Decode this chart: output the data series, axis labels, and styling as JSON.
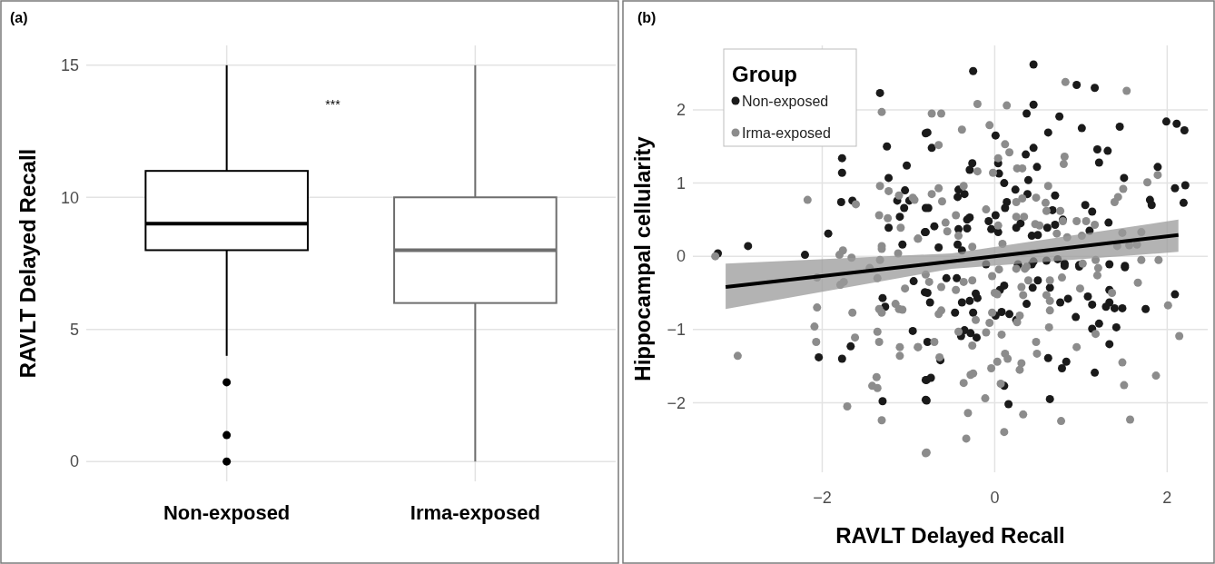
{
  "chart_data": [
    {
      "type": "box",
      "title": "(a)",
      "ylabel": "RAVLT Delayed Recall",
      "categories": [
        "Non-exposed",
        "Irma-exposed"
      ],
      "colors": [
        "#000000",
        "#6e6e6e"
      ],
      "boxes": [
        {
          "low": 4,
          "q1": 8,
          "median": 9,
          "q3": 11,
          "high": 15,
          "outliers": [
            3,
            1,
            0
          ]
        },
        {
          "low": 0,
          "q1": 6,
          "median": 8,
          "q3": 10,
          "high": 15
        }
      ],
      "ylim": [
        -0.75,
        15.75
      ],
      "yticks": [
        0,
        5,
        10,
        15
      ],
      "grid": true,
      "annotations": [
        "***"
      ]
    },
    {
      "type": "scatter",
      "title": "(b)",
      "xlabel": "RAVLT Delayed Recall",
      "ylabel": "Hippocampal cellularity",
      "legend_title": "Group",
      "legend": "top left",
      "marker": "circle",
      "grid": true,
      "xlim": [
        -3.5,
        2.47
      ],
      "ylim": [
        -2.95,
        2.88
      ],
      "xticks": [
        {
          "value": -2,
          "label": "−2"
        },
        0,
        2
      ],
      "yticks": [
        {
          "value": -2,
          "label": "−2"
        },
        {
          "value": -1,
          "label": "−1"
        },
        0,
        1,
        2
      ],
      "series": [
        {
          "name": "Non-exposed",
          "color": "#1a1a1a",
          "x": [
            -1.33,
            -1.25,
            -1.77,
            -1.77,
            -1.78,
            -1.65,
            -1.02,
            -1.23,
            -1.04,
            -1.13,
            -0.99,
            -1.05,
            -1.1,
            -1.23,
            -1.07,
            -1.93,
            -2.2,
            -2.86,
            -3.21,
            -0.8,
            -0.8,
            -0.81,
            -0.25,
            0.45,
            0.95,
            1.16,
            0.45,
            0.37,
            0.75,
            1.01,
            1.45,
            1.99,
            2.11,
            2.2,
            0.62,
            0.01,
            -0.78,
            -0.73,
            0.45,
            0.36,
            0.49,
            -0.26,
            -0.29,
            0.04,
            0.05,
            1.19,
            1.31,
            1.21,
            1.89,
            1.5,
            0.11,
            0.39,
            0.24,
            0.38,
            0.7,
            -0.42,
            -0.35,
            -0.43,
            2.09,
            2.21,
            2.19,
            1.8,
            1.82,
            1.05,
            1.13,
            0.67,
            0.14,
            0.12,
            -0.77,
            -0.29,
            -0.32,
            -0.07,
            0.01,
            -0.04,
            0.04,
            0.25,
            0.3,
            0.61,
            0.7,
            0.79,
            1.32,
            1.1,
            0.43,
            0.5,
            -0.7,
            -0.8,
            -0.42,
            -0.32,
            -0.65,
            -0.43,
            -0.38,
            0.45,
            0.6,
            0.73,
            0.81,
            0.98,
            1.33,
            1.51,
            0.27,
            -1.3,
            -1.27,
            -0.94,
            -0.95,
            -1.67,
            -2.04,
            -1.77,
            -1.3,
            -0.8,
            -0.8,
            -0.81,
            -0.56,
            -0.44,
            -0.78,
            -0.75,
            -0.38,
            -0.29,
            -0.2,
            -0.22,
            -0.46,
            -0.25,
            -0.35,
            -0.39,
            -0.28,
            -0.21,
            0.06,
            0.11,
            0.01,
            0.08,
            0.17,
            0.25,
            0.37,
            0.44,
            0.5,
            0.64,
            0.76,
            0.85,
            0.94,
            1.08,
            1.13,
            1.33,
            1.33,
            1.29,
            1.39,
            1.48,
            1.75,
            2.09,
            1.21,
            1.13,
            1.41,
            1.33,
            -0.78,
            -0.63,
            -0.79,
            -0.74,
            -0.79,
            0.11,
            0.16,
            0.62,
            0.78,
            0.83,
            1.16,
            0.64,
            0.27,
            0.43,
            0.81,
            0.98,
            1.51,
            -0.1
          ],
          "values": [
            2.23,
            1.5,
            1.34,
            1.14,
            0.74,
            0.76,
            1.24,
            1.07,
            0.9,
            0.76,
            0.76,
            0.66,
            0.54,
            0.39,
            0.16,
            0.31,
            0.02,
            0.14,
            0.04,
            1.68,
            0.66,
            0.33,
            2.53,
            2.62,
            2.34,
            2.3,
            2.07,
            1.95,
            1.91,
            1.75,
            1.77,
            1.84,
            1.81,
            1.72,
            1.69,
            1.65,
            1.69,
            1.48,
            1.48,
            1.39,
            1.22,
            1.27,
            1.18,
            1.27,
            1.13,
            1.46,
            1.44,
            1.28,
            1.22,
            1.07,
            1.0,
            1.04,
            0.91,
            0.85,
            0.83,
            0.91,
            0.85,
            0.81,
            0.93,
            0.97,
            0.73,
            0.77,
            0.7,
            0.7,
            0.61,
            0.63,
            0.74,
            0.66,
            0.66,
            0.53,
            0.5,
            0.48,
            0.56,
            0.37,
            0.33,
            0.39,
            0.45,
            0.39,
            0.43,
            0.5,
            0.46,
            0.35,
            0.28,
            0.29,
            0.41,
            0.33,
            0.37,
            0.38,
            0.12,
            0.16,
            0.08,
            -0.07,
            -0.06,
            -0.04,
            -0.1,
            -0.12,
            -0.11,
            -0.13,
            -0.12,
            -0.57,
            -0.69,
            -0.34,
            -1.02,
            -1.23,
            -1.38,
            -1.4,
            -1.98,
            -1.96,
            -1.69,
            -0.49,
            -0.3,
            -0.3,
            -0.5,
            -0.63,
            -0.63,
            -0.61,
            -0.57,
            -0.51,
            -0.77,
            -0.77,
            -1.01,
            -1.09,
            -1.05,
            -1.11,
            -0.46,
            -0.4,
            -0.81,
            -0.76,
            -0.79,
            -0.87,
            -0.65,
            -0.43,
            -0.33,
            -0.43,
            -0.63,
            -0.58,
            -0.83,
            -0.55,
            -0.66,
            -0.46,
            -0.63,
            -0.69,
            -0.71,
            -0.71,
            -0.72,
            -0.52,
            -0.92,
            -0.99,
            -0.97,
            -1.2,
            -1.17,
            -1.42,
            -1.69,
            -1.66,
            -1.97,
            -1.77,
            -2.02,
            -1.39,
            -1.53,
            -1.44,
            -1.59,
            -1.95,
            -0.11,
            -0.11,
            -0.13,
            -0.14,
            -0.15,
            -0.11
          ]
        },
        {
          "name": "Irma-exposed",
          "color": "#8c8c8c",
          "x": [
            -1.31,
            -2.17,
            -1.61,
            -1.33,
            -1.23,
            -1.34,
            -1.24,
            -1.09,
            -0.95,
            -0.93,
            -1.11,
            -0.89,
            -1.31,
            -1.31,
            -1.12,
            -1.76,
            -1.8,
            -1.66,
            -3.24,
            -1.33,
            -0.2,
            0.14,
            0.82,
            1.53,
            -0.73,
            -0.62,
            -0.38,
            -0.06,
            0.12,
            0.17,
            -0.65,
            0.04,
            0.81,
            0.8,
            0.26,
            0.32,
            -0.2,
            -0.02,
            0.62,
            1.77,
            1.89,
            1.49,
            1.43,
            1.39,
            -0.73,
            -0.65,
            -0.61,
            -0.36,
            -0.1,
            0.25,
            0.32,
            0.48,
            0.59,
            0.6,
            0.76,
            -0.45,
            -0.57,
            -0.55,
            0.04,
            0.25,
            0.34,
            0.47,
            0.52,
            0.79,
            0.95,
            1.06,
            1.16,
            0.72,
            0.84,
            1.01,
            1.48,
            1.7,
            1.42,
            1.56,
            1.65,
            0.09,
            -0.26,
            -0.42,
            1.7,
            1.9,
            1.17,
            1.2,
            1.02,
            0.37,
            0.05,
            -0.89,
            -2.06,
            -2.06,
            -1.79,
            -1.75,
            -1.36,
            -1.04,
            -1.65,
            -1.34,
            -1.31,
            -1.15,
            -1.11,
            -1.07,
            -2.09,
            -2.07,
            -1.62,
            -1.36,
            -1.34,
            -1.1,
            -1.1,
            -0.89,
            -2.98,
            -1.37,
            -1.42,
            -1.36,
            -1.71,
            -1.31,
            -0.8,
            -1.45,
            -0.8,
            -0.76,
            -0.62,
            -0.45,
            -0.36,
            -0.26,
            -0.65,
            -0.62,
            -0.22,
            -0.42,
            -0.26,
            -0.7,
            -0.89,
            -0.64,
            -0.03,
            0.0,
            0.03,
            -0.03,
            -0.06,
            -0.1,
            0.08,
            0.25,
            0.35,
            0.31,
            0.33,
            0.29,
            0.26,
            0.39,
            0.64,
            0.78,
            0.6,
            0.64,
            0.64,
            0.63,
            0.99,
            1.19,
            1.36,
            1.66,
            2.01,
            2.14,
            1.17,
            0.95,
            0.48,
            0.49,
            0.12,
            0.15,
            0.03,
            -0.04,
            0.31,
            0.29,
            1.48,
            1.5,
            1.87,
            0.07,
            -0.28,
            -0.25,
            -0.36,
            -0.11,
            -0.31,
            0.33,
            0.77,
            1.57,
            0.11,
            -0.33,
            -0.79
          ],
          "values": [
            1.97,
            0.77,
            0.71,
            0.96,
            0.89,
            0.56,
            0.52,
            0.39,
            0.8,
            0.77,
            0.83,
            0.24,
            0.14,
            0.1,
            0.04,
            0.08,
            0.02,
            -0.02,
            0.0,
            -0.05,
            2.08,
            2.06,
            2.38,
            2.26,
            1.95,
            1.95,
            1.73,
            1.79,
            1.53,
            1.42,
            1.52,
            1.34,
            1.36,
            1.26,
            1.2,
            1.2,
            1.16,
            1.14,
            0.96,
            1.01,
            1.11,
            0.92,
            0.81,
            0.74,
            0.85,
            0.93,
            0.75,
            0.96,
            0.64,
            0.74,
            0.79,
            0.8,
            0.73,
            0.62,
            0.62,
            0.56,
            0.46,
            0.34,
            0.42,
            0.54,
            0.54,
            0.44,
            0.42,
            0.48,
            0.48,
            0.48,
            0.43,
            0.31,
            0.26,
            0.28,
            0.32,
            0.33,
            0.14,
            0.15,
            0.16,
            0.17,
            0.13,
            0.28,
            -0.05,
            -0.05,
            -0.05,
            -0.16,
            -0.1,
            -0.14,
            -0.18,
            0.24,
            -0.29,
            -0.7,
            -0.39,
            -0.35,
            -0.3,
            -0.44,
            -0.77,
            -0.72,
            -0.77,
            -0.65,
            -0.72,
            -0.73,
            -0.96,
            -1.17,
            -1.11,
            -1.03,
            -1.17,
            -1.24,
            -1.36,
            -1.24,
            -1.36,
            -1.65,
            -1.77,
            -1.8,
            -2.05,
            -2.24,
            -2.69,
            -0.16,
            -0.25,
            -0.35,
            -0.42,
            -0.46,
            -0.35,
            -0.33,
            -0.79,
            -0.74,
            -0.87,
            -1.03,
            -1.22,
            -1.17,
            -1.24,
            -1.38,
            -0.27,
            -0.5,
            -0.52,
            -0.77,
            -0.91,
            -1.04,
            -1.07,
            -0.17,
            -0.17,
            -0.42,
            -0.53,
            -0.81,
            -0.9,
            -0.33,
            -0.33,
            -0.29,
            -0.53,
            -0.61,
            -0.74,
            -0.97,
            -0.44,
            -0.26,
            -0.5,
            -0.36,
            -0.67,
            -1.09,
            -1.06,
            -1.24,
            -1.17,
            -1.33,
            -1.33,
            -1.4,
            -1.44,
            -1.53,
            -1.46,
            -1.55,
            -1.45,
            -1.76,
            -1.63,
            -1.74,
            -1.62,
            -1.6,
            -1.73,
            -1.94,
            -2.14,
            -2.16,
            -2.25,
            -2.23,
            -2.4,
            -2.49,
            -2.68
          ]
        },
        {
          "type": "line",
          "marker": "none",
          "color": "#000000",
          "x": [
            -3.12,
            -0.5,
            2.13
          ],
          "values": [
            -0.42,
            -0.07,
            0.29
          ],
          "lower": [
            -0.72,
            -0.17,
            0.06
          ],
          "upper": [
            -0.1,
            0.04,
            0.5
          ]
        }
      ]
    }
  ]
}
